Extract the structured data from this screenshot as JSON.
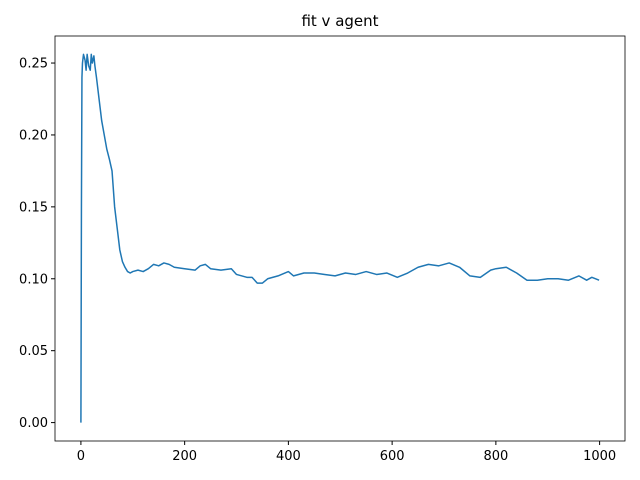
{
  "chart_data": {
    "type": "line",
    "title": "fit v agent",
    "x": [
      0,
      1,
      2,
      3,
      5,
      8,
      10,
      12,
      15,
      18,
      20,
      22,
      25,
      27,
      30,
      35,
      40,
      45,
      50,
      55,
      60,
      62,
      65,
      70,
      75,
      80,
      85,
      90,
      95,
      100,
      110,
      120,
      130,
      140,
      150,
      160,
      170,
      180,
      200,
      220,
      230,
      240,
      250,
      270,
      290,
      300,
      320,
      330,
      340,
      350,
      360,
      380,
      400,
      410,
      430,
      450,
      470,
      490,
      510,
      530,
      550,
      570,
      590,
      610,
      630,
      650,
      670,
      690,
      710,
      730,
      750,
      770,
      790,
      800,
      820,
      840,
      860,
      880,
      900,
      920,
      940,
      960,
      975,
      985,
      999
    ],
    "series": [
      {
        "name": "fit",
        "color": "#1f77b4",
        "values": [
          0,
          0.15,
          0.24,
          0.25,
          0.256,
          0.252,
          0.245,
          0.256,
          0.248,
          0.245,
          0.256,
          0.25,
          0.255,
          0.248,
          0.24,
          0.225,
          0.21,
          0.2,
          0.19,
          0.183,
          0.175,
          0.165,
          0.15,
          0.135,
          0.12,
          0.112,
          0.108,
          0.105,
          0.104,
          0.105,
          0.106,
          0.105,
          0.107,
          0.11,
          0.109,
          0.111,
          0.11,
          0.108,
          0.107,
          0.106,
          0.109,
          0.11,
          0.107,
          0.106,
          0.107,
          0.103,
          0.101,
          0.101,
          0.097,
          0.097,
          0.1,
          0.102,
          0.105,
          0.102,
          0.104,
          0.104,
          0.103,
          0.102,
          0.104,
          0.103,
          0.105,
          0.103,
          0.104,
          0.101,
          0.104,
          0.108,
          0.11,
          0.109,
          0.111,
          0.108,
          0.102,
          0.101,
          0.106,
          0.107,
          0.108,
          0.104,
          0.099,
          0.099,
          0.1,
          0.1,
          0.099,
          0.102,
          0.099,
          0.101,
          0.099
        ]
      }
    ],
    "xlim": [
      -49.95,
      1048.95
    ],
    "xticks": [
      0,
      200,
      400,
      600,
      800,
      1000
    ],
    "ylim": [
      -0.0128,
      0.2688
    ],
    "yticks": [
      {
        "value": 0,
        "label": "0.00"
      },
      {
        "value": 0.05,
        "label": "0.05"
      },
      {
        "value": 0.1,
        "label": "0.10"
      },
      {
        "value": 0.15,
        "label": "0.15"
      },
      {
        "value": 0.2,
        "label": "0.20"
      },
      {
        "value": 0.25,
        "label": "0.25"
      }
    ],
    "grid": false
  }
}
